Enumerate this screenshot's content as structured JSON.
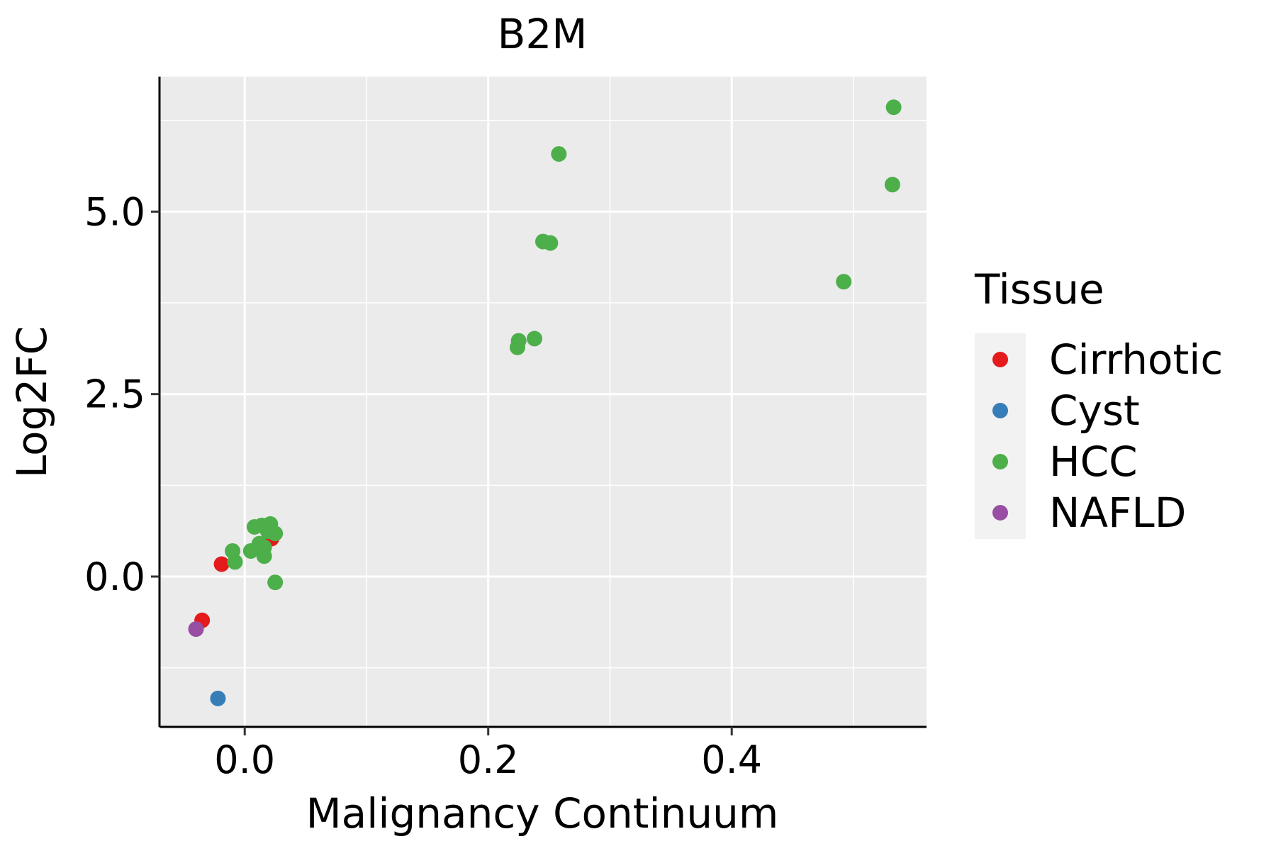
{
  "chart_data": {
    "type": "scatter",
    "title": "B2M",
    "xlabel": "Malignancy Continuum",
    "ylabel": "Log2FC",
    "xlim": [
      -0.07,
      0.56
    ],
    "ylim": [
      -2.06,
      6.85
    ],
    "x_ticks": [
      0.0,
      0.2,
      0.4
    ],
    "x_tick_labels": [
      "0.0",
      "0.2",
      "0.4"
    ],
    "x_minor_grid": [
      0.1,
      0.3,
      0.5
    ],
    "y_ticks": [
      0.0,
      2.5,
      5.0
    ],
    "y_tick_labels": [
      "0.0",
      "2.5",
      "5.0"
    ],
    "y_minor_grid": [
      -1.25,
      1.25,
      3.75,
      6.25
    ],
    "grid": true,
    "legend": {
      "title": "Tissue",
      "position": "right",
      "entries": [
        {
          "label": "Cirrhotic",
          "color": "#E41A1C"
        },
        {
          "label": "Cyst",
          "color": "#377EB8"
        },
        {
          "label": "HCC",
          "color": "#4DAF4A"
        },
        {
          "label": "NAFLD",
          "color": "#984EA3"
        }
      ]
    },
    "series": [
      {
        "name": "Cirrhotic",
        "color": "#E41A1C",
        "points": [
          [
            -0.019,
            0.17
          ],
          [
            -0.035,
            -0.6
          ],
          [
            0.022,
            0.52
          ]
        ]
      },
      {
        "name": "Cyst",
        "color": "#377EB8",
        "points": [
          [
            -0.022,
            -1.67
          ]
        ]
      },
      {
        "name": "HCC",
        "color": "#4DAF4A",
        "points": [
          [
            0.533,
            6.43
          ],
          [
            0.258,
            5.79
          ],
          [
            0.532,
            5.37
          ],
          [
            0.245,
            4.59
          ],
          [
            0.251,
            4.57
          ],
          [
            0.492,
            4.04
          ],
          [
            0.238,
            3.26
          ],
          [
            0.225,
            3.23
          ],
          [
            0.224,
            3.14
          ],
          [
            0.008,
            0.68
          ],
          [
            0.014,
            0.7
          ],
          [
            0.021,
            0.72
          ],
          [
            0.019,
            0.62
          ],
          [
            0.025,
            0.59
          ],
          [
            0.012,
            0.45
          ],
          [
            0.016,
            0.4
          ],
          [
            -0.01,
            0.35
          ],
          [
            0.005,
            0.35
          ],
          [
            0.016,
            0.28
          ],
          [
            -0.008,
            0.2
          ],
          [
            0.025,
            -0.08
          ]
        ]
      },
      {
        "name": "NAFLD",
        "color": "#984EA3",
        "points": [
          [
            -0.04,
            -0.72
          ]
        ]
      }
    ]
  }
}
